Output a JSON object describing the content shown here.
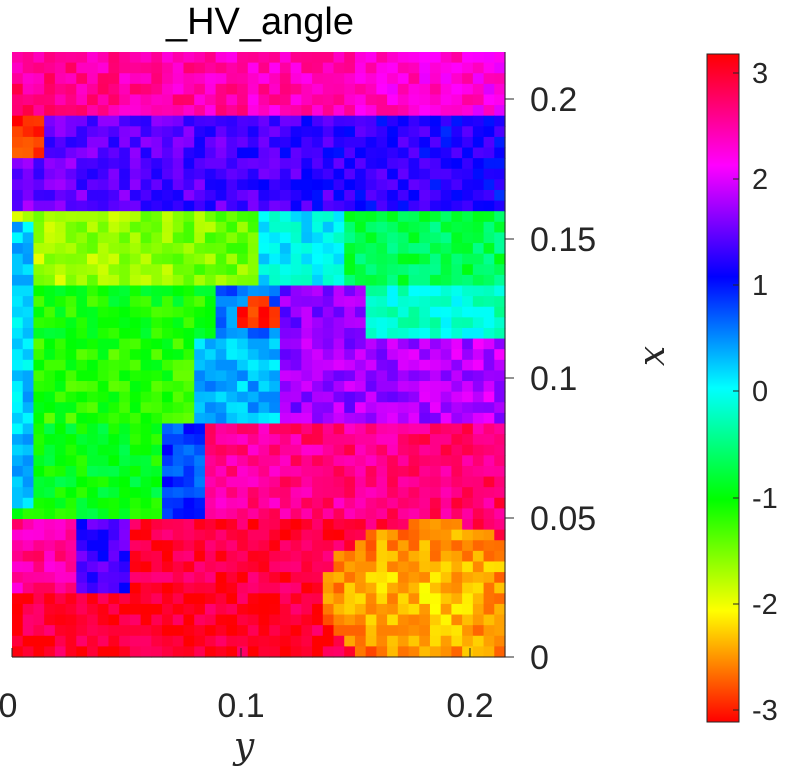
{
  "chart_data": {
    "type": "heatmap",
    "title": "_HV_angle",
    "xlabel": "y",
    "ylabel": "x",
    "xlim": [
      0,
      0.215
    ],
    "ylim": [
      0,
      0.215
    ],
    "x_ticks": [
      "0",
      "0.1",
      "0.2"
    ],
    "y_ticks": [
      "0",
      "0.05",
      "0.1",
      "0.15",
      "0.2"
    ],
    "colorbar": {
      "label": "",
      "range": [
        -3.14159,
        3.14159
      ],
      "ticks": [
        "3",
        "2",
        "1",
        "0",
        "-1",
        "-2",
        "-3"
      ],
      "colormap": "hsv"
    },
    "grid": false,
    "regions": [
      {
        "name": "top-band",
        "x_range": [
          0.19,
          0.215
        ],
        "approx_value": 2.6
      },
      {
        "name": "upper-blue",
        "x_range": [
          0.16,
          0.19
        ],
        "approx_value": 1.2
      },
      {
        "name": "left-yellow-green",
        "x_range": [
          0.14,
          0.18
        ],
        "approx_value": -1.8
      },
      {
        "name": "right-green",
        "x_range": [
          0.12,
          0.17
        ],
        "approx_value": -0.8
      },
      {
        "name": "center-red-spot",
        "x_range": [
          0.12,
          0.135
        ],
        "approx_value": -3.0
      },
      {
        "name": "left-green-body",
        "x_range": [
          0.04,
          0.13
        ],
        "approx_value": -1.2
      },
      {
        "name": "mid-blue-purple",
        "x_range": [
          0.08,
          0.12
        ],
        "approx_value": 1.5
      },
      {
        "name": "lower-magenta",
        "x_range": [
          0.03,
          0.08
        ],
        "approx_value": 2.6
      },
      {
        "name": "bottom-red",
        "x_range": [
          0.0,
          0.03
        ],
        "approx_value": 3.0
      },
      {
        "name": "bottom-right-orange",
        "x_range": [
          0.0,
          0.04
        ],
        "approx_value": -2.4
      }
    ]
  }
}
